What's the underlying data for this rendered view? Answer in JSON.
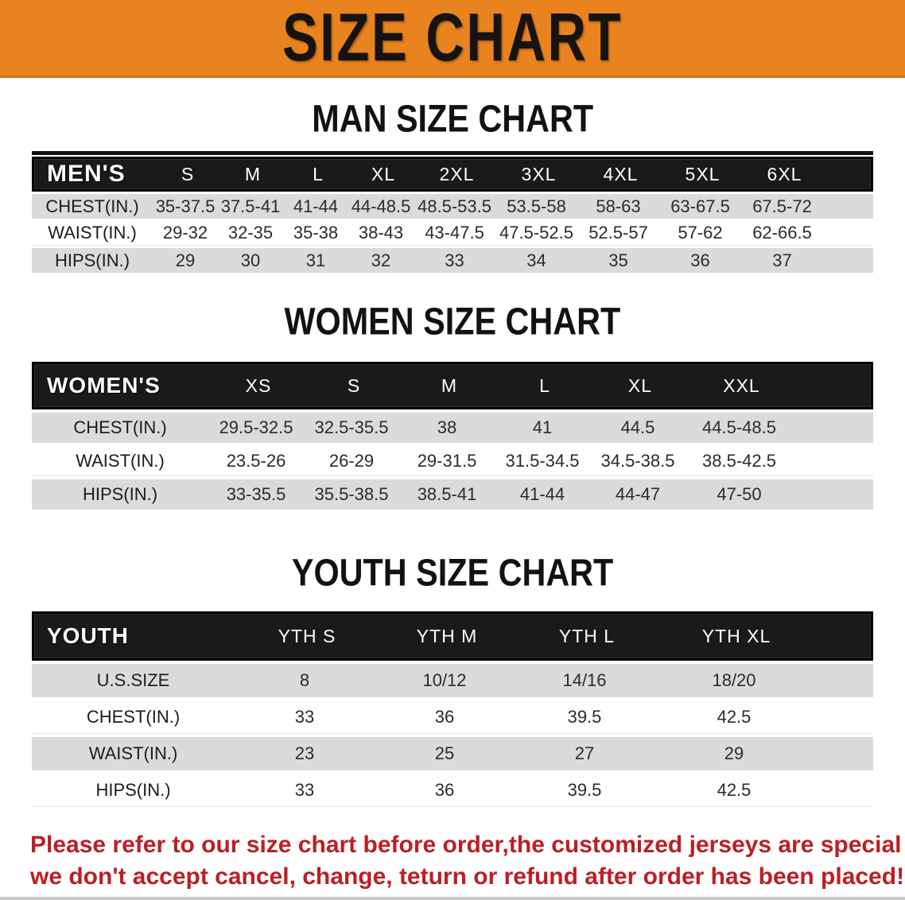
{
  "banner": {
    "title": "SIZE CHART",
    "bg_color": "#E8831F",
    "text_color": "#171310"
  },
  "colors": {
    "header_bg": "#1A1A1A",
    "row_gray": "#DBDBDB",
    "row_white": "#FEFEFE",
    "footer_red": "#B92025"
  },
  "sections": [
    {
      "heading": "MAN SIZE CHART",
      "table": {
        "label_header": "MEN'S",
        "size_headers": [
          "S",
          "M",
          "L",
          "XL",
          "2XL",
          "3XL",
          "4XL",
          "5XL",
          "6XL"
        ],
        "rows": [
          {
            "label": "CHEST(IN.)",
            "values": [
              "35-37.5",
              "37.5-41",
              "41-44",
              "44-48.5",
              "48.5-53.5",
              "53.5-58",
              "58-63",
              "63-67.5",
              "67.5-72"
            ]
          },
          {
            "label": "WAIST(IN.)",
            "values": [
              "29-32",
              "32-35",
              "35-38",
              "38-43",
              "43-47.5",
              "47.5-52.5",
              "52.5-57",
              "57-62",
              "62-66.5"
            ]
          },
          {
            "label": "HIPS(IN.)",
            "values": [
              "29",
              "30",
              "31",
              "32",
              "33",
              "34",
              "35",
              "36",
              "37"
            ]
          }
        ]
      }
    },
    {
      "heading": "WOMEN SIZE CHART",
      "table": {
        "label_header": "WOMEN'S",
        "size_headers": [
          "XS",
          "S",
          "M",
          "L",
          "XL",
          "XXL"
        ],
        "rows": [
          {
            "label": "CHEST(IN.)",
            "values": [
              "29.5-32.5",
              "32.5-35.5",
              "38",
              "41",
              "44.5",
              "44.5-48.5"
            ]
          },
          {
            "label": "WAIST(IN.)",
            "values": [
              "23.5-26",
              "26-29",
              "29-31.5",
              "31.5-34.5",
              "34.5-38.5",
              "38.5-42.5"
            ]
          },
          {
            "label": "HIPS(IN.)",
            "values": [
              "33-35.5",
              "35.5-38.5",
              "38.5-41",
              "41-44",
              "44-47",
              "47-50"
            ]
          }
        ]
      }
    },
    {
      "heading": "YOUTH SIZE CHART",
      "table": {
        "label_header": "YOUTH",
        "size_headers": [
          "YTH S",
          "YTH M",
          "YTH L",
          "YTH XL"
        ],
        "rows": [
          {
            "label": "U.S.SIZE",
            "values": [
              "8",
              "10/12",
              "14/16",
              "18/20"
            ]
          },
          {
            "label": "CHEST(IN.)",
            "values": [
              "33",
              "36",
              "39.5",
              "42.5"
            ]
          },
          {
            "label": "WAIST(IN.)",
            "values": [
              "23",
              "25",
              "27",
              "29"
            ]
          },
          {
            "label": "HIPS(IN.)",
            "values": [
              "33",
              "36",
              "39.5",
              "42.5"
            ]
          }
        ]
      }
    }
  ],
  "footer": {
    "line1": "Please refer to our size chart before order,the customized jerseys are special products,",
    "line2": "we don't accept cancel, change, teturn or refund after order has been placed!"
  }
}
